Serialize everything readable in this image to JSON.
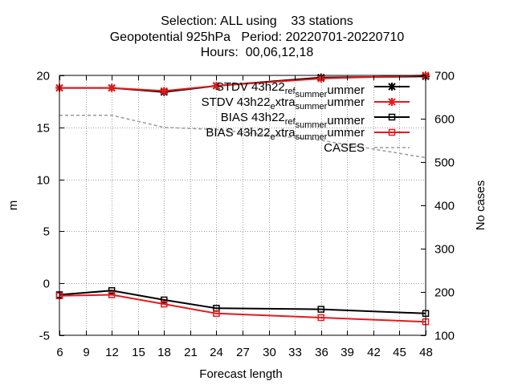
{
  "chart_data": {
    "type": "line",
    "title_lines": [
      "Selection: ALL using    33 stations",
      "Geopotential 925hPa   Period: 20220701-20220710",
      "Hours:  00,06,12,18"
    ],
    "xlabel": "Forecast length",
    "ylabel": "m",
    "y2label": "No cases",
    "xlim": [
      6,
      48
    ],
    "ylim": [
      -5,
      20
    ],
    "y2lim": [
      100,
      700
    ],
    "xticks": [
      6,
      9,
      12,
      15,
      18,
      21,
      24,
      27,
      30,
      33,
      36,
      39,
      42,
      45,
      48
    ],
    "yticks": [
      -5,
      0,
      5,
      10,
      15,
      20
    ],
    "y2ticks": [
      100,
      200,
      300,
      400,
      500,
      600,
      700
    ],
    "grid": true,
    "legend_position": "top-right",
    "series": [
      {
        "name": "STDV 43h22_ref_summer",
        "legend": {
          "base": "STDV 43h22",
          "s1": "ref",
          "mid": "",
          "s2": "summer"
        },
        "axis": "y1",
        "color": "#000000",
        "marker": "star",
        "x": [
          6,
          12,
          18,
          24,
          36,
          48
        ],
        "values": [
          18.8,
          18.8,
          18.4,
          19.0,
          19.8,
          19.9
        ]
      },
      {
        "name": "STDV 43h22_extra_summer",
        "legend": {
          "base": "STDV 43h22",
          "s1": "e",
          "mid": "xtra",
          "s2": "summer"
        },
        "axis": "y1",
        "color": "#e41a1c",
        "marker": "star",
        "x": [
          6,
          12,
          18,
          24,
          36,
          48
        ],
        "values": [
          18.8,
          18.8,
          18.5,
          19.0,
          19.7,
          20.0
        ]
      },
      {
        "name": "BIAS 43h22_ref_summer",
        "legend": {
          "base": "BIAS 43h22",
          "s1": "ref",
          "mid": "",
          "s2": "summer"
        },
        "axis": "y1",
        "color": "#000000",
        "marker": "square",
        "x": [
          6,
          12,
          18,
          24,
          36,
          48
        ],
        "values": [
          -1.1,
          -0.7,
          -1.6,
          -2.4,
          -2.5,
          -2.9
        ]
      },
      {
        "name": "BIAS 43h22_extra_summer",
        "legend": {
          "base": "BIAS 43h22",
          "s1": "e",
          "mid": "xtra",
          "s2": "summer"
        },
        "axis": "y1",
        "color": "#e41a1c",
        "marker": "square",
        "x": [
          6,
          12,
          18,
          24,
          36,
          48
        ],
        "values": [
          -1.2,
          -1.1,
          -2.0,
          -2.9,
          -3.3,
          -3.7
        ]
      },
      {
        "name": "CASES",
        "legend": {
          "base": "CASES",
          "s1": "",
          "mid": "",
          "s2": ""
        },
        "axis": "y2",
        "color": "#999999",
        "marker": "none",
        "dashed": true,
        "x": [
          6,
          12,
          18,
          24,
          36,
          48
        ],
        "values": [
          608,
          608,
          580,
          575,
          550,
          510
        ]
      }
    ]
  }
}
